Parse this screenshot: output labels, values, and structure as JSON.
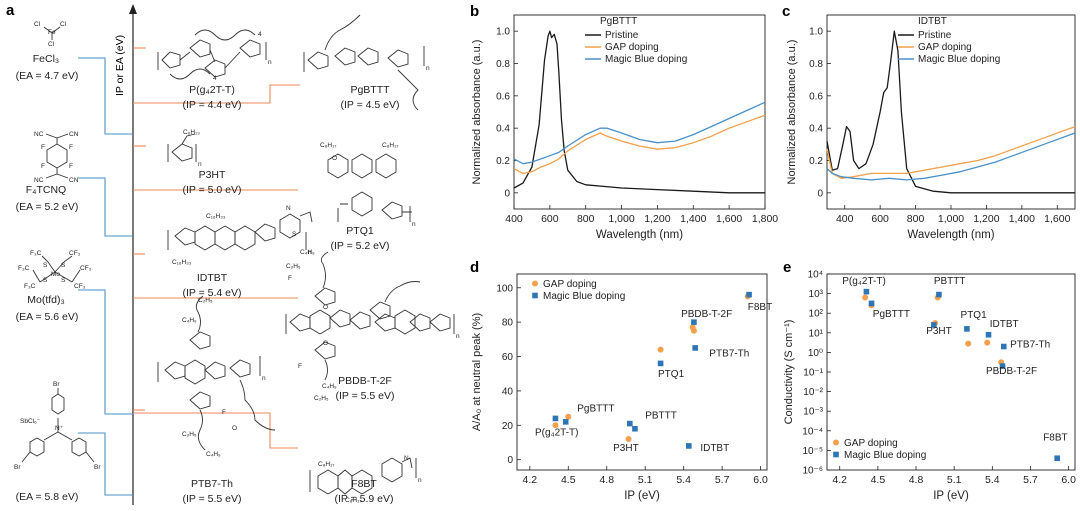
{
  "panel_a": {
    "label": "a",
    "axis_label": "IP or EA (eV)",
    "dopants": [
      {
        "id": "fecl3",
        "name": "FeCl₃",
        "value": "(EA = 4.7 eV)",
        "atoms": [
          "Cl",
          "Cl",
          "Fe",
          "Cl"
        ]
      },
      {
        "id": "f4tcnq",
        "name": "F₄TCNQ",
        "value": "(EA = 5.2 eV)",
        "atoms": [
          "NC",
          "CN",
          "NC",
          "CN",
          "F",
          "F",
          "F",
          "F"
        ]
      },
      {
        "id": "motfd",
        "name": "Mo(tfd)₃",
        "value": "(EA = 5.6 eV)",
        "atoms": [
          "F₃C",
          "CF₃",
          "F₃C",
          "CF₃",
          "F₃C",
          "CF₃",
          "Mo",
          "S",
          "S",
          "S",
          "S"
        ]
      },
      {
        "id": "magicblue",
        "name": "",
        "value": "(EA = 5.8 eV)",
        "atoms": [
          "Br",
          "Br",
          "Br",
          "SbCl₆⁻",
          "N⁺"
        ]
      }
    ],
    "polymers": [
      {
        "id": "pg42tt",
        "name": "P(g₄2T-T)",
        "value": "(IP = 4.4 eV)"
      },
      {
        "id": "pgbttt",
        "name": "PgBTTT",
        "value": "(IP = 4.5 eV)"
      },
      {
        "id": "p3ht",
        "name": "P3HT",
        "value": "(IP = 5.0 eV)"
      },
      {
        "id": "ptq1",
        "name": "PTQ1",
        "value": "(IP = 5.2 eV)"
      },
      {
        "id": "idtbt",
        "name": "IDTBT",
        "value": "(IP = 5.4 eV)"
      },
      {
        "id": "pbdbt2f",
        "name": "PBDB-T-2F",
        "value": "(IP = 5.5 eV)"
      },
      {
        "id": "ptb7th",
        "name": "PTB7-Th",
        "value": "(IP = 5.5 eV)"
      },
      {
        "id": "f8bt",
        "name": "F8BT",
        "value": "(IP = 5.9 eV)"
      }
    ],
    "struct_labels": [
      "C₆H₁₃",
      "C₈H₁₇",
      "C₈H₁₇",
      "C₁₆H₃₃",
      "C₁₆H₃₃",
      "C₂H₅",
      "C₄H₉",
      "C₂H₅",
      "C₄H₉",
      "C₂H₅",
      "C₄H₉",
      "C₂H₅",
      "C₄H₉",
      "C₈H₁₇",
      "C₈H₁₇",
      "O",
      "O",
      "O",
      "O",
      "F",
      "F",
      "F",
      "S",
      "N",
      "N",
      "n",
      "n",
      "n",
      "n",
      "n",
      "n",
      "n",
      "n",
      "4",
      "4"
    ]
  },
  "chart_data": [
    {
      "panel": "b",
      "type": "line",
      "title": "PgBTTT",
      "xlabel": "Wavelength (nm)",
      "ylabel": "Normalized absorbance (a.u.)",
      "xlim": [
        400,
        1800
      ],
      "ylim": [
        -0.1,
        1.1
      ],
      "xticks": [
        400,
        600,
        800,
        1000,
        1200,
        1400,
        1600,
        1800
      ],
      "xtick_labels": [
        "400",
        "600",
        "800",
        "1,000",
        "1,200",
        "1,400",
        "1,600",
        "1,800"
      ],
      "yticks": [
        0,
        0.2,
        0.4,
        0.6,
        0.8,
        1.0
      ],
      "ytick_labels": [
        "0",
        "0.2",
        "0.4",
        "0.6",
        "0.8",
        "1.0"
      ],
      "series": [
        {
          "name": "Pristine",
          "color": "#1a1a1a",
          "x": [
            400,
            450,
            500,
            540,
            570,
            590,
            600,
            610,
            625,
            640,
            650,
            665,
            680,
            700,
            750,
            800,
            900,
            1000,
            1200,
            1400,
            1600,
            1800
          ],
          "y": [
            0.03,
            0.06,
            0.16,
            0.42,
            0.82,
            0.97,
            1.0,
            0.96,
            0.98,
            0.92,
            0.75,
            0.45,
            0.26,
            0.14,
            0.07,
            0.05,
            0.04,
            0.03,
            0.02,
            0.01,
            0.0,
            0.0
          ]
        },
        {
          "name": "GAP doping",
          "color": "#f2a04b",
          "x": [
            400,
            450,
            500,
            550,
            600,
            650,
            700,
            800,
            880,
            920,
            1000,
            1100,
            1200,
            1300,
            1400,
            1500,
            1600,
            1700,
            1800
          ],
          "y": [
            0.15,
            0.12,
            0.13,
            0.16,
            0.18,
            0.21,
            0.26,
            0.33,
            0.37,
            0.35,
            0.32,
            0.29,
            0.27,
            0.28,
            0.31,
            0.35,
            0.4,
            0.44,
            0.48
          ]
        },
        {
          "name": "Magic Blue doping",
          "color": "#4a90c8",
          "x": [
            400,
            450,
            500,
            550,
            600,
            650,
            700,
            800,
            880,
            920,
            1000,
            1100,
            1200,
            1300,
            1400,
            1500,
            1600,
            1700,
            1800
          ],
          "y": [
            0.21,
            0.18,
            0.19,
            0.21,
            0.23,
            0.25,
            0.29,
            0.36,
            0.4,
            0.4,
            0.37,
            0.33,
            0.31,
            0.32,
            0.36,
            0.41,
            0.46,
            0.51,
            0.56
          ]
        }
      ]
    },
    {
      "panel": "c",
      "type": "line",
      "title": "IDTBT",
      "xlabel": "Wavelength (nm)",
      "ylabel": "Normalized absorbance (a.u.)",
      "xlim": [
        300,
        1700
      ],
      "ylim": [
        -0.1,
        1.1
      ],
      "xticks": [
        400,
        600,
        800,
        1000,
        1200,
        1400,
        1600
      ],
      "xtick_labels": [
        "400",
        "600",
        "800",
        "1,000",
        "1,200",
        "1,400",
        "1,600"
      ],
      "yticks": [
        0,
        0.2,
        0.4,
        0.6,
        0.8,
        1.0
      ],
      "ytick_labels": [
        "0",
        "0.2",
        "0.4",
        "0.6",
        "0.8",
        "1.0"
      ],
      "series": [
        {
          "name": "Pristine",
          "color": "#1a1a1a",
          "x": [
            300,
            330,
            360,
            390,
            410,
            430,
            450,
            480,
            520,
            560,
            600,
            620,
            640,
            660,
            680,
            700,
            720,
            750,
            800,
            900,
            1000,
            1200,
            1400,
            1700
          ],
          "y": [
            0.32,
            0.14,
            0.15,
            0.3,
            0.41,
            0.38,
            0.2,
            0.15,
            0.18,
            0.3,
            0.5,
            0.62,
            0.65,
            0.82,
            1.0,
            0.88,
            0.5,
            0.15,
            0.04,
            0.01,
            0.0,
            0.0,
            0.0,
            0.0
          ]
        },
        {
          "name": "GAP doping",
          "color": "#f2a04b",
          "x": [
            300,
            330,
            380,
            450,
            550,
            650,
            750,
            850,
            950,
            1050,
            1150,
            1250,
            1350,
            1450,
            1550,
            1700
          ],
          "y": [
            0.27,
            0.12,
            0.09,
            0.1,
            0.12,
            0.12,
            0.12,
            0.14,
            0.16,
            0.18,
            0.2,
            0.23,
            0.27,
            0.31,
            0.35,
            0.41
          ]
        },
        {
          "name": "Magic Blue doping",
          "color": "#4a90c8",
          "x": [
            300,
            330,
            380,
            450,
            550,
            650,
            750,
            850,
            950,
            1050,
            1150,
            1250,
            1350,
            1450,
            1550,
            1700
          ],
          "y": [
            0.15,
            0.12,
            0.1,
            0.09,
            0.08,
            0.09,
            0.08,
            0.09,
            0.11,
            0.13,
            0.16,
            0.19,
            0.23,
            0.27,
            0.31,
            0.37
          ]
        }
      ]
    },
    {
      "panel": "d",
      "type": "scatter",
      "xlabel": "IP (eV)",
      "ylabel": "A/A₀ at neutral peak (%)",
      "xlim": [
        4.1,
        6.05
      ],
      "ylim": [
        -6,
        108
      ],
      "xticks": [
        4.2,
        4.5,
        4.8,
        5.1,
        5.4,
        5.7,
        6.0
      ],
      "xtick_labels": [
        "4.2",
        "4.5",
        "4.8",
        "5.1",
        "5.4",
        "5.7",
        "6.0"
      ],
      "yticks": [
        0,
        20,
        40,
        60,
        80,
        100
      ],
      "ytick_labels": [
        "0",
        "20",
        "40",
        "60",
        "80",
        "100"
      ],
      "series": [
        {
          "name": "GAP doping",
          "color": "#f2a04b",
          "marker": "circle",
          "x": [
            4.4,
            4.5,
            4.97,
            5.22,
            5.47,
            5.48,
            5.9
          ],
          "y": [
            20,
            25,
            12,
            64,
            77,
            75,
            95
          ]
        },
        {
          "name": "Magic Blue doping",
          "color": "#2e75b6",
          "marker": "square",
          "x": [
            4.4,
            4.48,
            4.98,
            5.02,
            5.22,
            5.44,
            5.48,
            5.49,
            5.91
          ],
          "y": [
            24,
            22,
            21,
            18,
            56,
            8,
            80,
            65,
            96
          ]
        }
      ],
      "point_labels": [
        {
          "text": "PgBTTT",
          "x": 4.57,
          "y": 28
        },
        {
          "text": "P(g₄2T-T)",
          "x": 4.24,
          "y": 14
        },
        {
          "text": "PBTTT",
          "x": 5.1,
          "y": 24
        },
        {
          "text": "P3HT",
          "x": 4.85,
          "y": 5
        },
        {
          "text": "PBDB-T-2F",
          "x": 5.38,
          "y": 83
        },
        {
          "text": "PTB7-Th",
          "x": 5.6,
          "y": 60
        },
        {
          "text": "PTQ1",
          "x": 5.2,
          "y": 48
        },
        {
          "text": "IDTBT",
          "x": 5.53,
          "y": 5
        },
        {
          "text": "F8BT",
          "x": 5.9,
          "y": 87
        }
      ]
    },
    {
      "panel": "e",
      "type": "scatter",
      "xlabel": "IP (eV)",
      "ylabel": "Conductivity (S cm⁻¹)",
      "yscale": "log",
      "xlim": [
        4.1,
        6.05
      ],
      "ylim": [
        -6,
        4
      ],
      "xticks": [
        4.2,
        4.5,
        4.8,
        5.1,
        5.4,
        5.7,
        6.0
      ],
      "xtick_labels": [
        "4.2",
        "4.5",
        "4.8",
        "5.1",
        "5.4",
        "5.7",
        "6.0"
      ],
      "yticks": [
        4,
        3,
        2,
        1,
        0,
        -1,
        -2,
        -3,
        -4,
        -5,
        -6
      ],
      "ytick_labels": [
        "10⁴",
        "10³",
        "10²",
        "10¹",
        "10⁰",
        "10⁻¹",
        "10⁻²",
        "10⁻³",
        "10⁻⁴",
        "10⁻⁵",
        "10⁻⁶"
      ],
      "series": [
        {
          "name": "GAP doping",
          "color": "#f2a04b",
          "marker": "circle",
          "x": [
            4.4,
            4.45,
            4.95,
            4.97,
            5.21,
            5.36,
            5.47
          ],
          "y": [
            2.8,
            2.4,
            1.5,
            2.8,
            0.45,
            0.5,
            -0.5
          ]
        },
        {
          "name": "Magic Blue doping",
          "color": "#2e75b6",
          "marker": "square",
          "x": [
            4.41,
            4.45,
            4.94,
            4.98,
            5.2,
            5.37,
            5.49,
            5.48,
            5.91
          ],
          "y": [
            3.1,
            2.5,
            1.4,
            2.95,
            1.2,
            0.9,
            0.3,
            -0.7,
            -5.4
          ]
        }
      ],
      "point_labels": [
        {
          "text": "P(g₄2T-T)",
          "x": 4.22,
          "y": 3.5
        },
        {
          "text": "PgBTTT",
          "x": 4.46,
          "y": 1.8
        },
        {
          "text": "PBTTT",
          "x": 4.94,
          "y": 3.5
        },
        {
          "text": "P3HT",
          "x": 4.88,
          "y": 0.95
        },
        {
          "text": "PTQ1",
          "x": 5.15,
          "y": 1.75
        },
        {
          "text": "IDTBT",
          "x": 5.38,
          "y": 1.3
        },
        {
          "text": "PTB7-Th",
          "x": 5.54,
          "y": 0.25
        },
        {
          "text": "PBDB-T-2F",
          "x": 5.35,
          "y": -1.1
        },
        {
          "text": "F8BT",
          "x": 5.8,
          "y": -4.5
        }
      ]
    }
  ]
}
